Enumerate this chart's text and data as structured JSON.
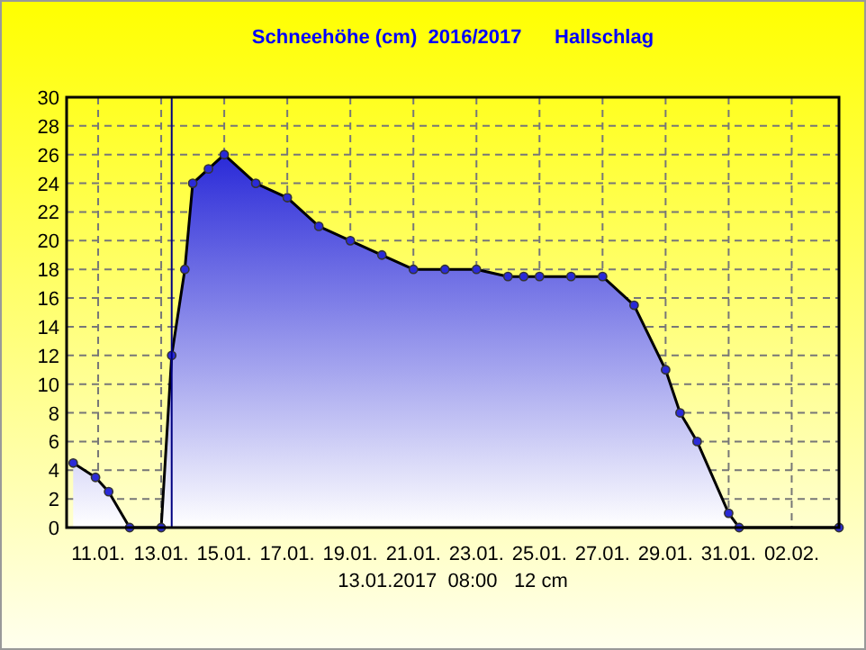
{
  "chart_data": {
    "type": "area",
    "title": "Schneehöhe (cm)  2016/2017      Hallschlag",
    "x": [
      "2017-01-10T05:00",
      "2017-01-10T22:00",
      "2017-01-11T08:00",
      "2017-01-12",
      "2017-01-13",
      "2017-01-13T08:00",
      "2017-01-13T18:00",
      "2017-01-14",
      "2017-01-14T12:00",
      "2017-01-15",
      "2017-01-16",
      "2017-01-17",
      "2017-01-18",
      "2017-01-19",
      "2017-01-20",
      "2017-01-21",
      "2017-01-22",
      "2017-01-23",
      "2017-01-24",
      "2017-01-24T12:00",
      "2017-01-25",
      "2017-01-26",
      "2017-01-27",
      "2017-01-28",
      "2017-01-29",
      "2017-01-29T11:00",
      "2017-01-30",
      "2017-01-31",
      "2017-01-31T08:00",
      "2017-02-03T12:00"
    ],
    "series": [
      {
        "color": "#2a2ad8",
        "values": [
          4.5,
          3.5,
          2.5,
          0,
          0,
          12,
          18,
          24,
          25,
          26,
          24,
          23,
          21,
          20,
          19,
          18,
          18,
          18,
          17.5,
          17.5,
          17.5,
          17.5,
          17.5,
          15.5,
          11,
          8,
          6,
          1,
          0,
          0
        ]
      }
    ],
    "xlim": [
      "2017-01-10",
      "2017-02-03T12:00"
    ],
    "xticks": [
      {
        "value": "2017-01-11",
        "label": "11.01."
      },
      {
        "value": "2017-01-13",
        "label": "13.01."
      },
      {
        "value": "2017-01-15",
        "label": "15.01."
      },
      {
        "value": "2017-01-17",
        "label": "17.01."
      },
      {
        "value": "2017-01-19",
        "label": "19.01."
      },
      {
        "value": "2017-01-21",
        "label": "21.01."
      },
      {
        "value": "2017-01-23",
        "label": "23.01."
      },
      {
        "value": "2017-01-25",
        "label": "25.01."
      },
      {
        "value": "2017-01-27",
        "label": "27.01."
      },
      {
        "value": "2017-01-29",
        "label": "29.01."
      },
      {
        "value": "2017-01-31",
        "label": "31.01."
      },
      {
        "value": "2017-02-02",
        "label": "02.02."
      }
    ],
    "ylim": [
      0,
      30
    ],
    "yticks": [
      0,
      2,
      4,
      6,
      8,
      10,
      12,
      14,
      16,
      18,
      20,
      22,
      24,
      26,
      28,
      30
    ],
    "ref_lines": [
      {
        "axis": "x",
        "value": "2017-01-13T08:00",
        "color": "#000080"
      }
    ],
    "annotations": [
      "13.01.2017  08:00   12 cm"
    ],
    "grid": true,
    "marker": "circle",
    "line_style": "solid"
  }
}
